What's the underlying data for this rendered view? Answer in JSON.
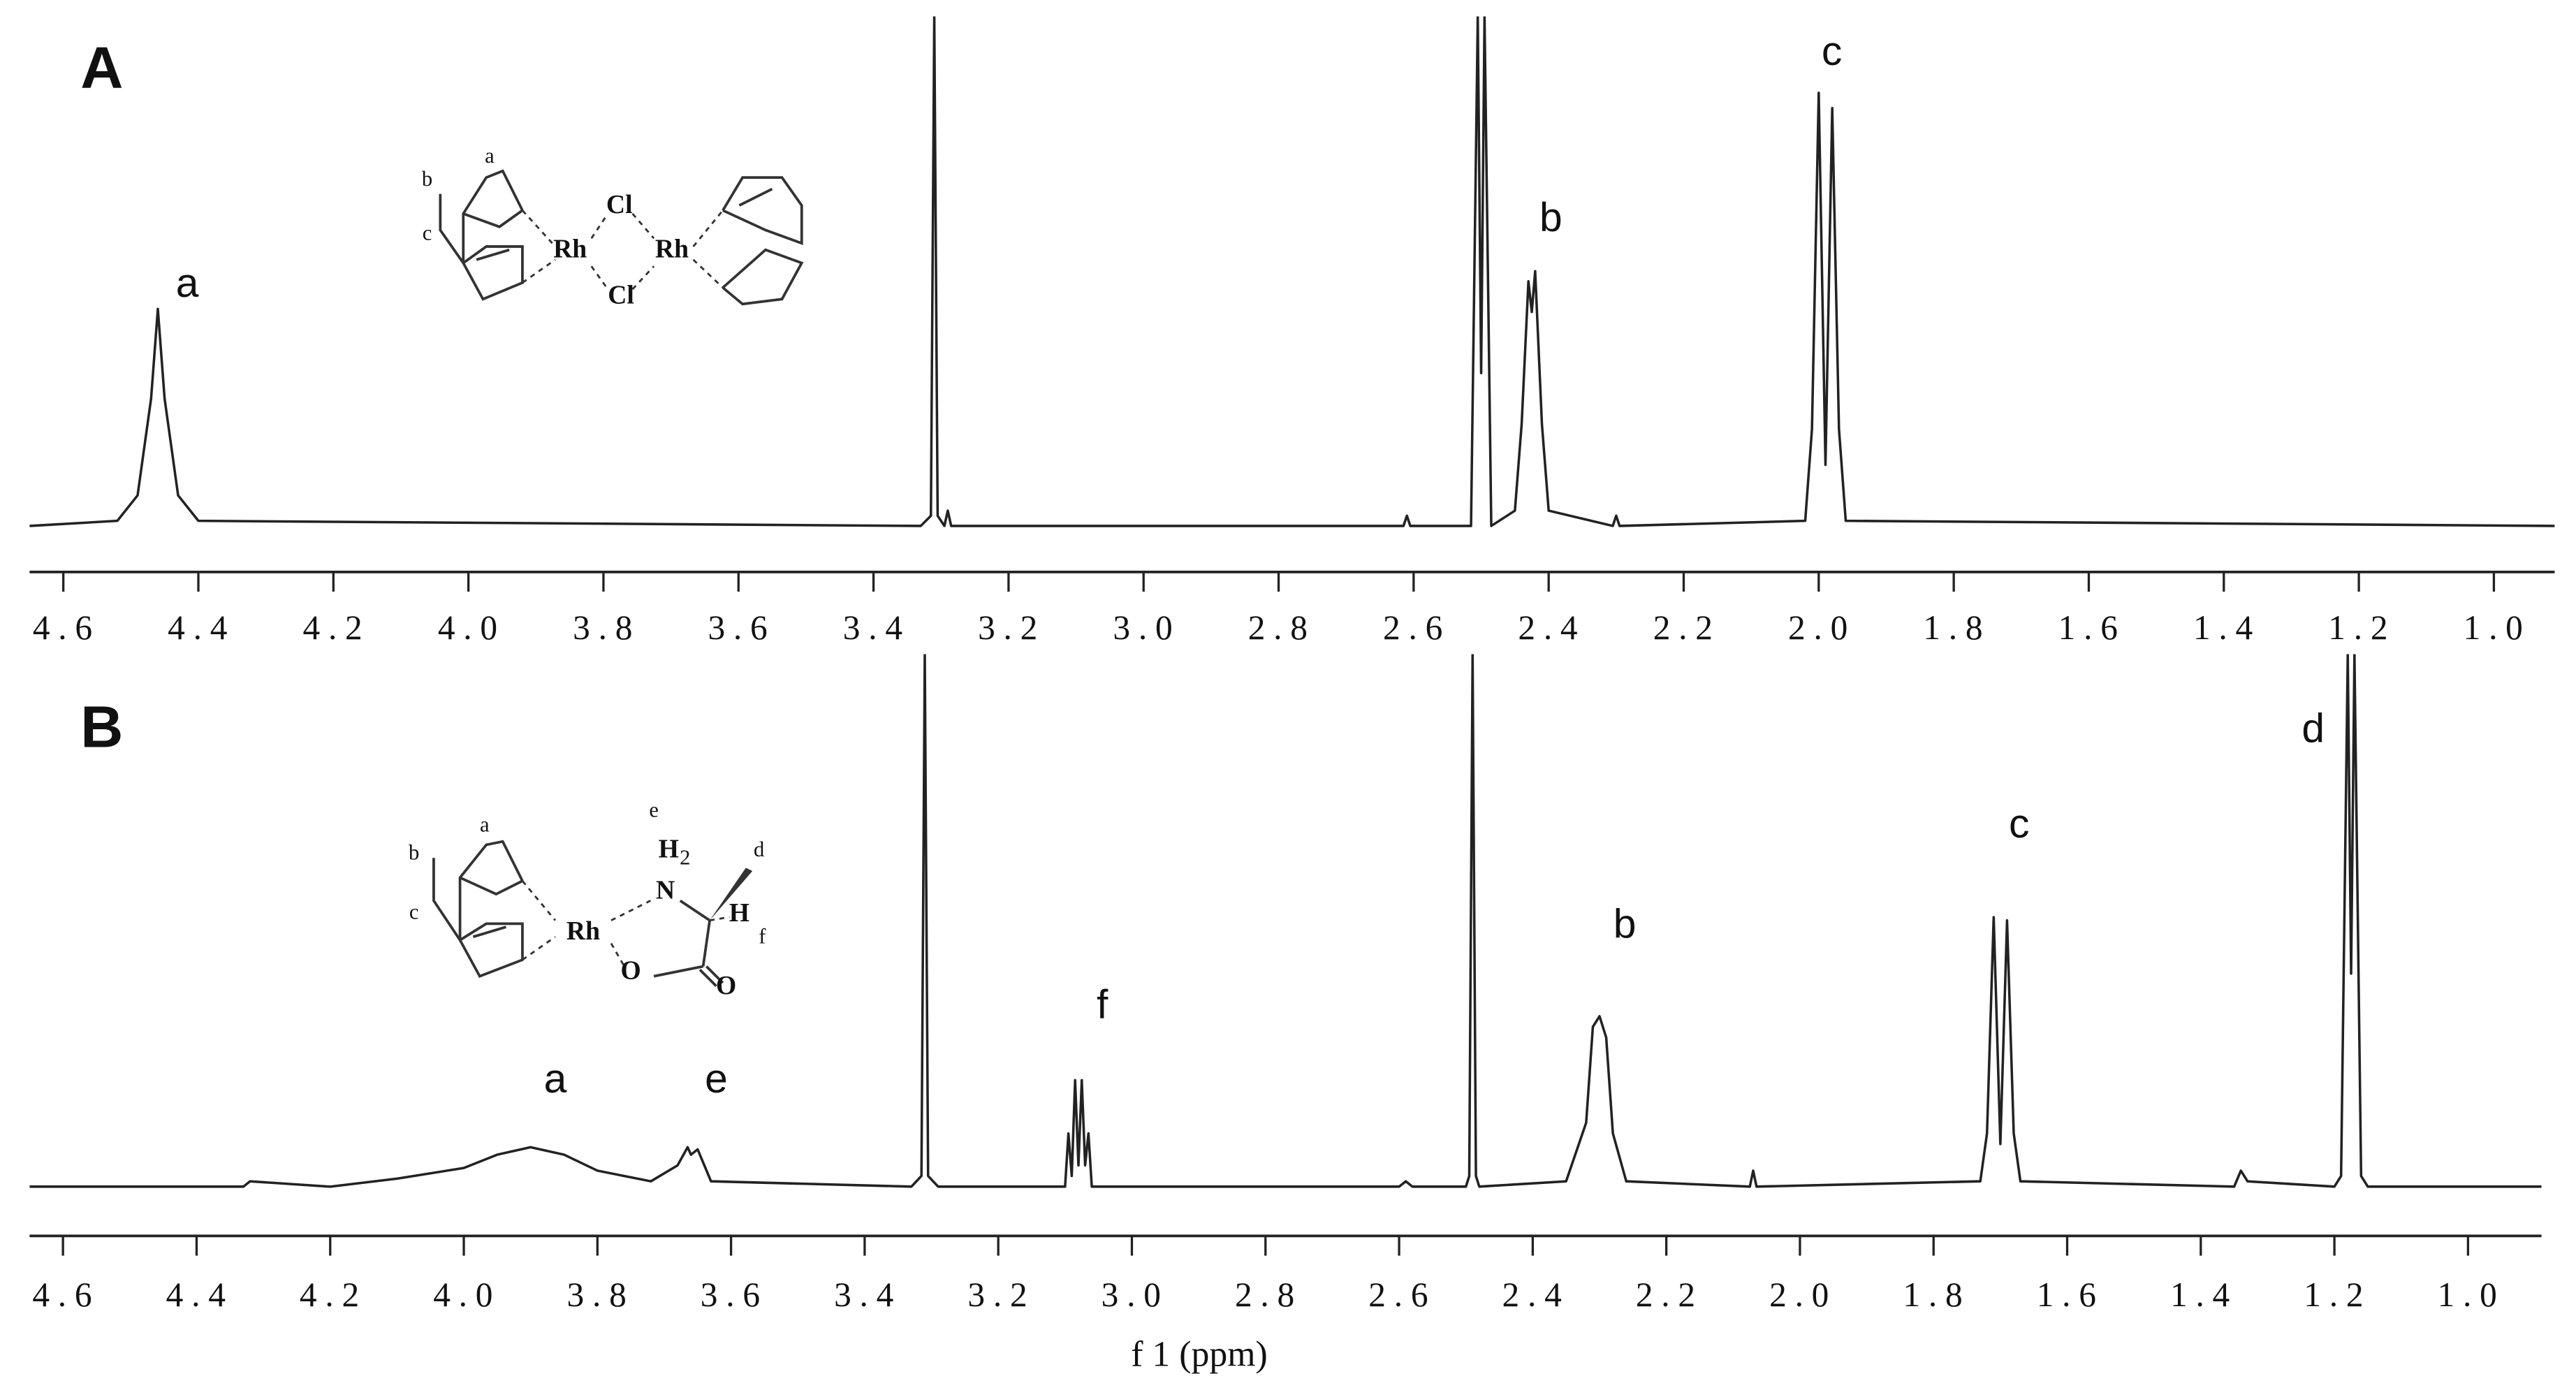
{
  "chart_data": [
    {
      "type": "line",
      "panel_label": "A",
      "color": "#222222",
      "xlim": [
        4.65,
        0.91
      ],
      "ylim": [
        0,
        100
      ],
      "xticks": [
        4.6,
        4.4,
        4.2,
        {
          "value": 4.0,
          "label": "4.0"
        },
        3.8,
        3.6,
        3.4,
        3.2,
        {
          "value": 3.0,
          "label": "3.0"
        },
        2.8,
        2.6,
        2.4,
        2.2,
        {
          "value": 2.0,
          "label": "2.0"
        },
        1.8,
        1.6,
        1.4,
        1.2,
        {
          "value": 1.0,
          "label": "1.0"
        }
      ],
      "x": [
        4.65,
        4.52,
        4.49,
        4.47,
        4.46,
        4.45,
        4.43,
        4.4,
        3.33,
        3.315,
        3.31,
        3.305,
        3.295,
        3.29,
        3.285,
        2.615,
        2.61,
        2.605,
        2.515,
        2.505,
        2.5,
        2.495,
        2.485,
        2.45,
        2.44,
        2.43,
        2.425,
        2.42,
        2.41,
        2.4,
        2.305,
        2.3,
        2.295,
        2.02,
        2.01,
        2.0,
        1.99,
        1.98,
        1.97,
        1.96,
        0.91
      ],
      "values": [
        0,
        1,
        6,
        25,
        42.6,
        25,
        6,
        1,
        0,
        2,
        100,
        2,
        0,
        3,
        0,
        0,
        2,
        0,
        0,
        100,
        30,
        100,
        0,
        3,
        20,
        48,
        42,
        50,
        20,
        3,
        0,
        2,
        0,
        1,
        19,
        85,
        12,
        82,
        19,
        1,
        0
      ],
      "annotations": [
        "a",
        "b",
        "c"
      ],
      "structure_labels": [
        "a",
        "b",
        "c",
        "Rh",
        "Cl",
        "Cl",
        "Rh"
      ]
    },
    {
      "type": "line",
      "panel_label": "B",
      "color": "#222222",
      "xlabel": "f 1 (ppm)",
      "xlim": [
        4.65,
        0.89
      ],
      "ylim": [
        0,
        100
      ],
      "xticks": [
        4.6,
        4.4,
        4.2,
        {
          "value": 4.0,
          "label": "4.0"
        },
        3.8,
        3.6,
        3.4,
        3.2,
        {
          "value": 3.0,
          "label": "3.0"
        },
        2.8,
        2.6,
        2.4,
        2.2,
        {
          "value": 2.0,
          "label": "2.0"
        },
        1.8,
        1.6,
        1.4,
        1.2,
        {
          "value": 1.0,
          "label": "1.0"
        }
      ],
      "x": [
        4.65,
        4.33,
        4.32,
        4.2,
        4.1,
        4.0,
        3.95,
        3.9,
        3.85,
        3.8,
        3.72,
        3.68,
        3.665,
        3.66,
        3.65,
        3.63,
        3.33,
        3.315,
        3.31,
        3.305,
        3.29,
        3.1,
        3.095,
        3.09,
        3.085,
        3.08,
        3.075,
        3.07,
        3.065,
        3.06,
        3.05,
        2.6,
        2.59,
        2.58,
        2.5,
        2.495,
        2.49,
        2.485,
        2.48,
        2.35,
        2.32,
        2.31,
        2.3,
        2.29,
        2.28,
        2.26,
        2.075,
        2.07,
        2.065,
        1.73,
        1.72,
        1.71,
        1.7,
        1.69,
        1.68,
        1.67,
        1.35,
        1.34,
        1.33,
        1.2,
        1.19,
        1.18,
        1.175,
        1.17,
        1.16,
        1.15,
        0.89
      ],
      "values": [
        0,
        0,
        1,
        0,
        1.5,
        3.5,
        6,
        7.4,
        6,
        3,
        1,
        4,
        7.4,
        6,
        7,
        1,
        0,
        2,
        100,
        2,
        0,
        0,
        10,
        2,
        20,
        4,
        20,
        4,
        10,
        0,
        0,
        0,
        1,
        0,
        0,
        2,
        100,
        2,
        0,
        1,
        12,
        30,
        32,
        28,
        10,
        1,
        0,
        3,
        0,
        1,
        10,
        50.6,
        8,
        50,
        10,
        1,
        0,
        3,
        1,
        0,
        2,
        100,
        40,
        100,
        2,
        0,
        0
      ],
      "annotations": [
        "a",
        "e",
        "f",
        "b",
        "c",
        "d"
      ],
      "structure_labels": [
        "a",
        "b",
        "c",
        "e",
        "H",
        "2",
        "d",
        "N",
        "Rh",
        "H",
        "f",
        "O",
        "O"
      ]
    }
  ]
}
